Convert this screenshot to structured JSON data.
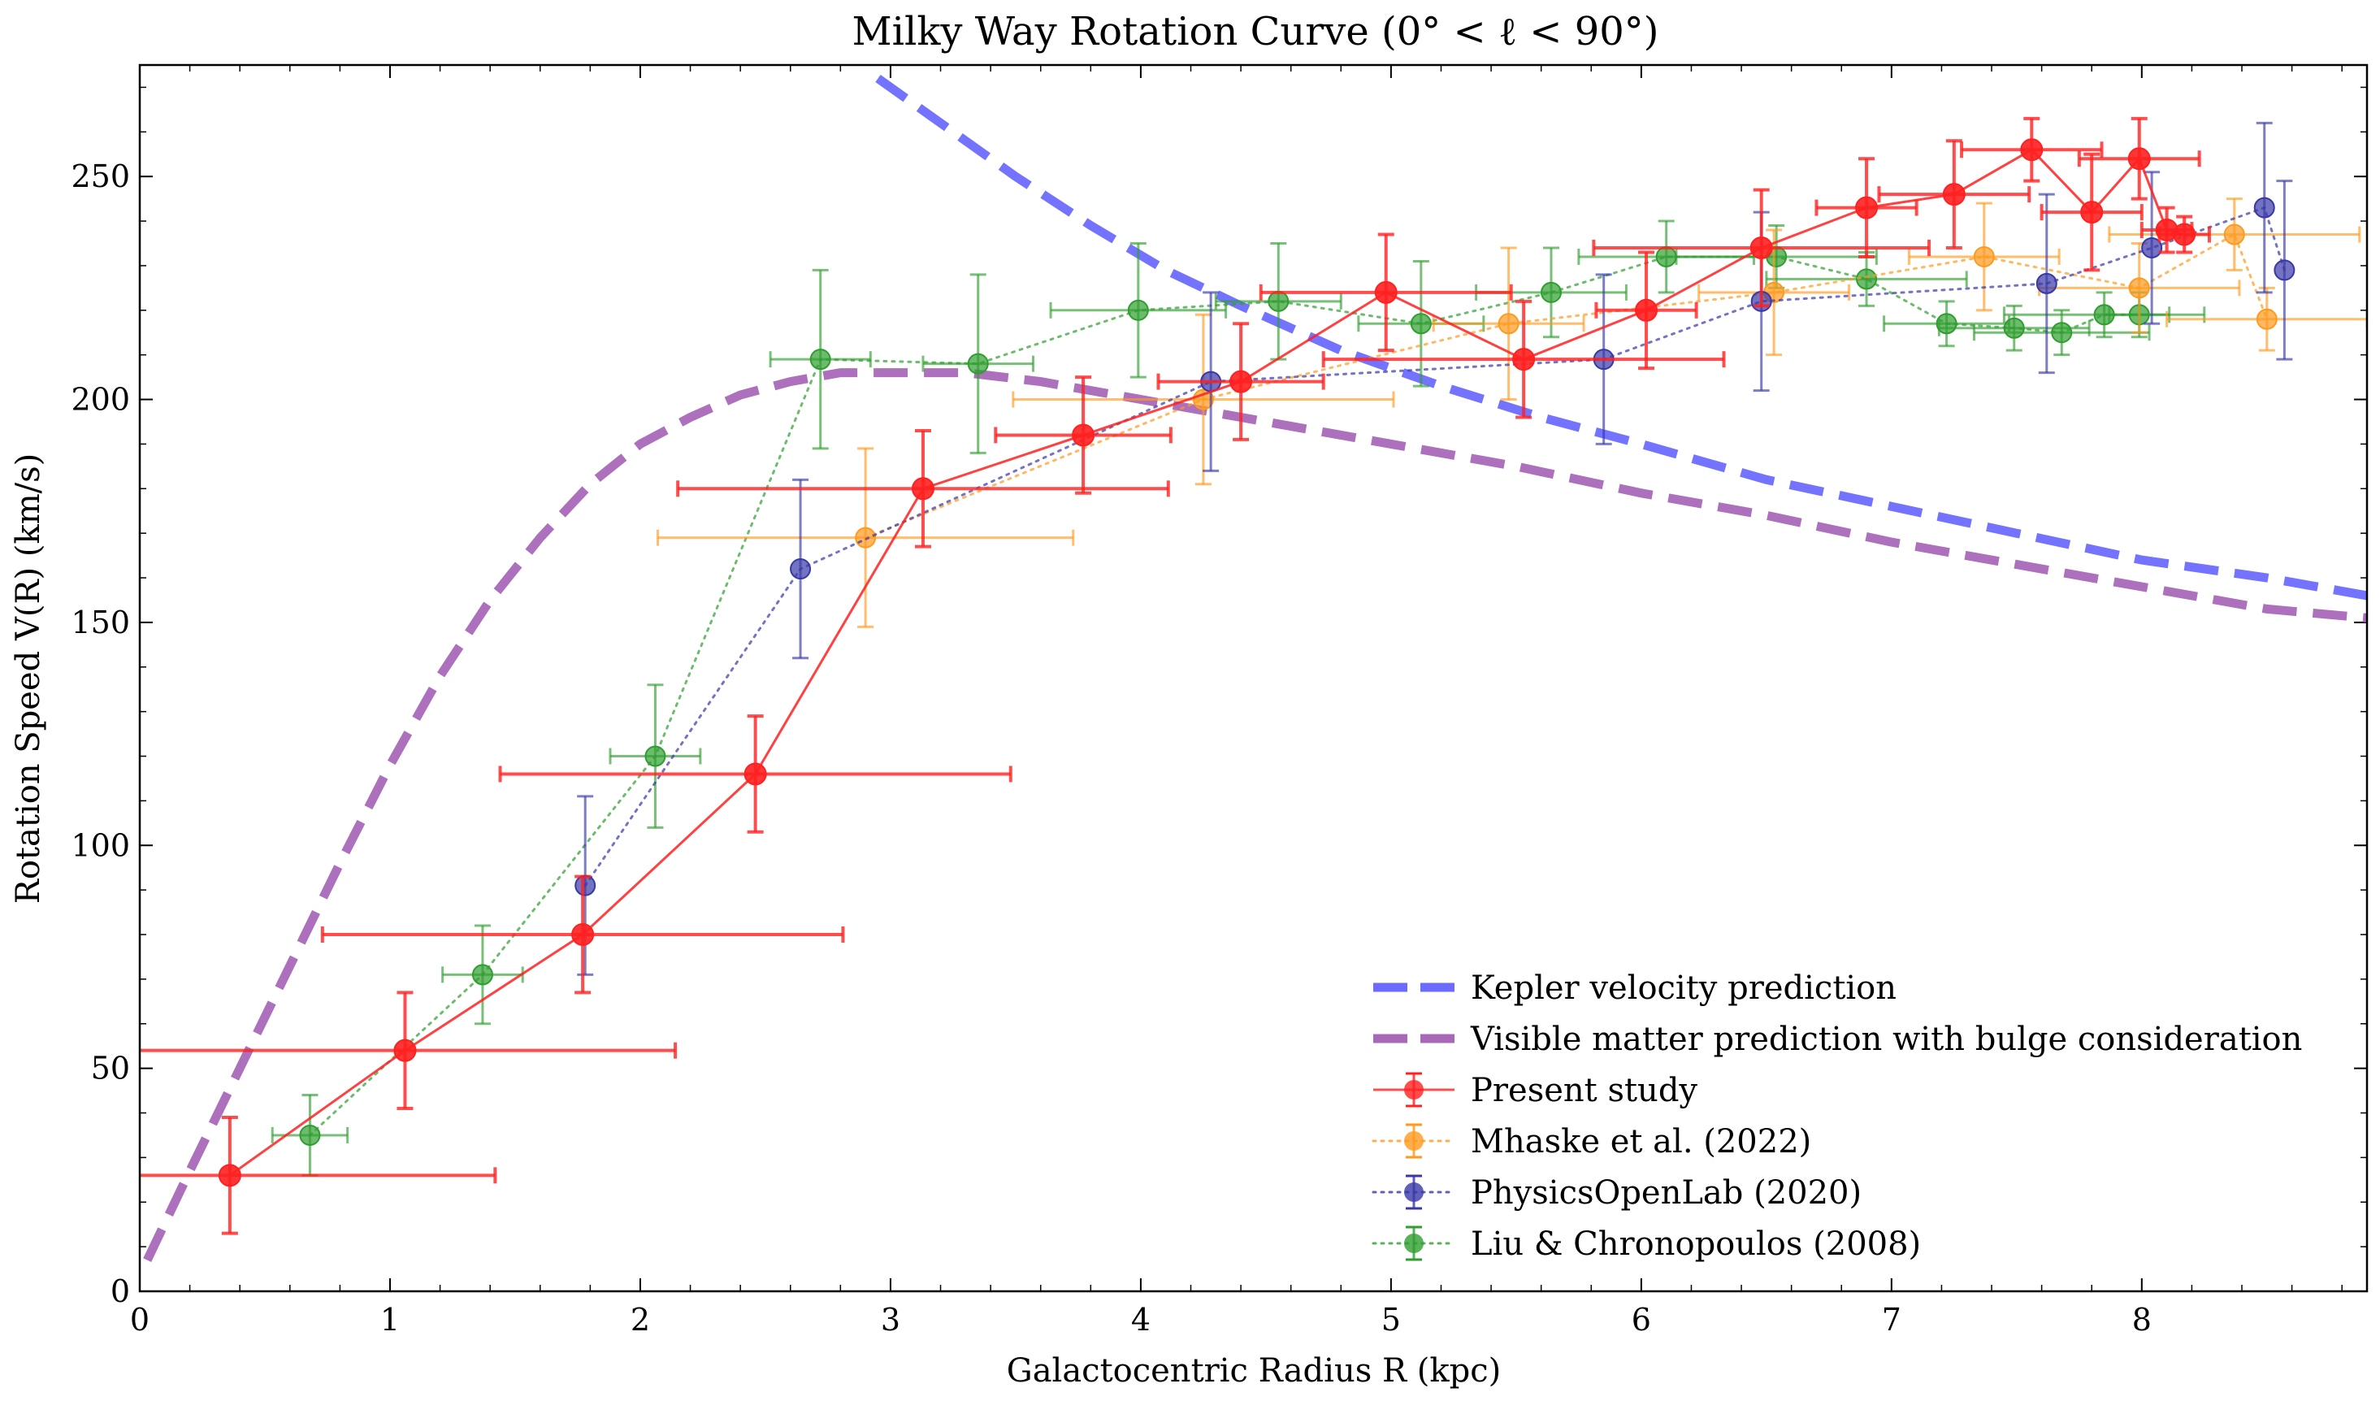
{
  "chart_data": {
    "type": "scatter",
    "title": "Milky Way Rotation Curve (0° < ℓ < 90°)",
    "xlabel": "Galactocentric Radius R (kpc)",
    "ylabel": "Rotation Speed V(R) (km/s)",
    "xlim": [
      0,
      8.9
    ],
    "ylim": [
      0,
      275
    ],
    "xticks": [
      0,
      1,
      2,
      3,
      4,
      5,
      6,
      7,
      8
    ],
    "yticks": [
      0,
      50,
      100,
      150,
      200,
      250
    ],
    "legend_position": "bottom-right",
    "curves": [
      {
        "name": "Kepler velocity prediction",
        "color": "#6b6bff",
        "x": [
          2.95,
          3.2,
          3.5,
          3.8,
          4.1,
          4.4,
          4.8,
          5.2,
          5.6,
          6.0,
          6.5,
          7.0,
          7.5,
          8.0,
          8.5,
          8.9
        ],
        "y": [
          272,
          262,
          250,
          239,
          229,
          221,
          211,
          203,
          196,
          190,
          182,
          176,
          170,
          164,
          160,
          156
        ]
      },
      {
        "name": "Visible matter prediction with bulge consideration",
        "color": "#a868b8",
        "x": [
          0.03,
          0.2,
          0.4,
          0.6,
          0.8,
          1.0,
          1.2,
          1.4,
          1.6,
          1.8,
          2.0,
          2.2,
          2.4,
          2.6,
          2.8,
          3.0,
          3.3,
          3.6,
          4.0,
          4.5,
          5.0,
          5.5,
          6.0,
          6.5,
          7.0,
          7.5,
          8.0,
          8.5,
          8.9
        ],
        "y": [
          7,
          27,
          50,
          73,
          96,
          118,
          138,
          155,
          169,
          181,
          190,
          196,
          201,
          204,
          206,
          206,
          206,
          204,
          200,
          195,
          190,
          185,
          179,
          174,
          168,
          163,
          158,
          153,
          151
        ]
      }
    ],
    "series": [
      {
        "name": "Present study",
        "color": "#ff2020",
        "linestyle": "solid",
        "x": [
          0.36,
          1.06,
          1.77,
          2.46,
          3.13,
          3.77,
          4.4,
          4.98,
          5.53,
          6.02,
          6.48,
          6.9,
          7.25,
          7.56,
          7.8,
          7.99,
          8.1,
          8.17
        ],
        "y": [
          26,
          54,
          80,
          116,
          180,
          192,
          204,
          224,
          209,
          220,
          234,
          243,
          246,
          256,
          242,
          254,
          238,
          237
        ],
        "xerr": [
          1.06,
          1.08,
          1.04,
          1.02,
          0.98,
          0.35,
          0.33,
          0.5,
          0.8,
          0.2,
          0.67,
          0.2,
          0.3,
          0.28,
          0.2,
          0.24,
          0.1,
          0.1
        ],
        "yerr": [
          13,
          13,
          13,
          13,
          13,
          13,
          13,
          13,
          13,
          13,
          13,
          11,
          12,
          7,
          13,
          9,
          5,
          4
        ]
      },
      {
        "name": " Mhaske et al. (2022)",
        "color": "#ff9a1e",
        "linestyle": "dotted",
        "x": [
          2.9,
          4.25,
          5.47,
          6.53,
          7.37,
          7.99,
          8.37,
          8.5
        ],
        "y": [
          169,
          200,
          217,
          224,
          232,
          225,
          237,
          218
        ],
        "xerr": [
          0.83,
          0.76,
          0.3,
          0.3,
          0.3,
          0.4,
          0.5,
          0.4
        ],
        "yerr": [
          20,
          19,
          17,
          14,
          12,
          10,
          8,
          7
        ]
      },
      {
        "name": "PhysicsOpenLab (2020)",
        "color": "#3838a8",
        "linestyle": "dotted",
        "x": [
          1.78,
          2.64,
          4.28,
          5.85,
          6.48,
          7.62,
          8.04,
          8.49,
          8.57
        ],
        "y": [
          91,
          162,
          204,
          209,
          222,
          226,
          234,
          243,
          229
        ],
        "xerr": [
          0,
          0,
          0,
          0,
          0,
          0,
          0,
          0,
          0
        ],
        "yerr": [
          20,
          20,
          20,
          19,
          20,
          20,
          17,
          19,
          20
        ]
      },
      {
        "name": "Liu & Chronopoulos (2008)",
        "color": "#2f9e2f",
        "linestyle": "dotted",
        "x": [
          0.68,
          1.37,
          2.06,
          2.72,
          3.35,
          3.99,
          4.55,
          5.12,
          5.64,
          6.1,
          6.54,
          6.9,
          7.22,
          7.49,
          7.68,
          7.85,
          7.99
        ],
        "y": [
          35,
          71,
          120,
          209,
          208,
          220,
          222,
          217,
          224,
          232,
          232,
          227,
          217,
          216,
          215,
          219,
          219
        ],
        "xerr": [
          0.15,
          0.16,
          0.18,
          0.2,
          0.22,
          0.35,
          0.25,
          0.25,
          0.3,
          0.35,
          0.4,
          0.4,
          0.25,
          0.3,
          0.35,
          0.4,
          0.12
        ],
        "yerr": [
          9,
          11,
          16,
          20,
          20,
          15,
          13,
          14,
          10,
          8,
          7,
          6,
          5,
          5,
          5,
          5,
          5
        ]
      }
    ]
  }
}
